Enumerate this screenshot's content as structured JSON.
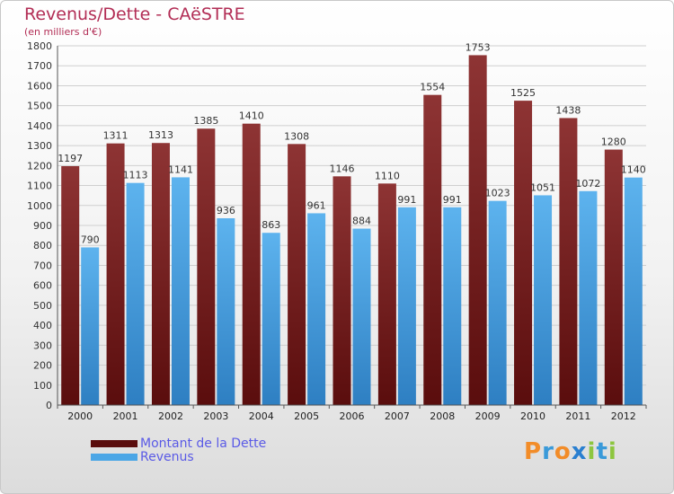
{
  "title": "Revenus/Dette - CAëSTRE",
  "subtitle": "(en milliers d'€)",
  "chart_data": {
    "type": "bar",
    "categories": [
      "2000",
      "2001",
      "2002",
      "2003",
      "2004",
      "2005",
      "2006",
      "2007",
      "2008",
      "2009",
      "2010",
      "2011",
      "2012"
    ],
    "series": [
      {
        "name": "Montant de la Dette",
        "values": [
          1197,
          1311,
          1313,
          1385,
          1410,
          1308,
          1146,
          1110,
          1554,
          1753,
          1525,
          1438,
          1280
        ],
        "color": "#7a1f1f"
      },
      {
        "name": "Revenus",
        "values": [
          790,
          1113,
          1141,
          936,
          863,
          961,
          884,
          991,
          991,
          1023,
          1051,
          1072,
          1140
        ],
        "color": "#4ba6e6"
      }
    ],
    "ylim": [
      0,
      1800
    ],
    "yticks": [
      0,
      100,
      200,
      300,
      400,
      500,
      600,
      700,
      800,
      900,
      1000,
      1100,
      1200,
      1300,
      1400,
      1500,
      1600,
      1700,
      1800
    ],
    "grid": true,
    "legend_position": "bottom-left"
  },
  "legend": {
    "items": [
      {
        "label": "Montant de la Dette",
        "color": "#7a1f1f"
      },
      {
        "label": "Revenus",
        "color": "#4ba6e6"
      }
    ]
  },
  "logo": {
    "letters": [
      "P",
      "r",
      "o",
      "x",
      "i",
      "t",
      "i"
    ],
    "colors": [
      "#f28c28",
      "#3a9ad9",
      "#f28c28",
      "#2a7fd0",
      "#8dc63f",
      "#3a9ad9",
      "#8dc63f"
    ]
  }
}
